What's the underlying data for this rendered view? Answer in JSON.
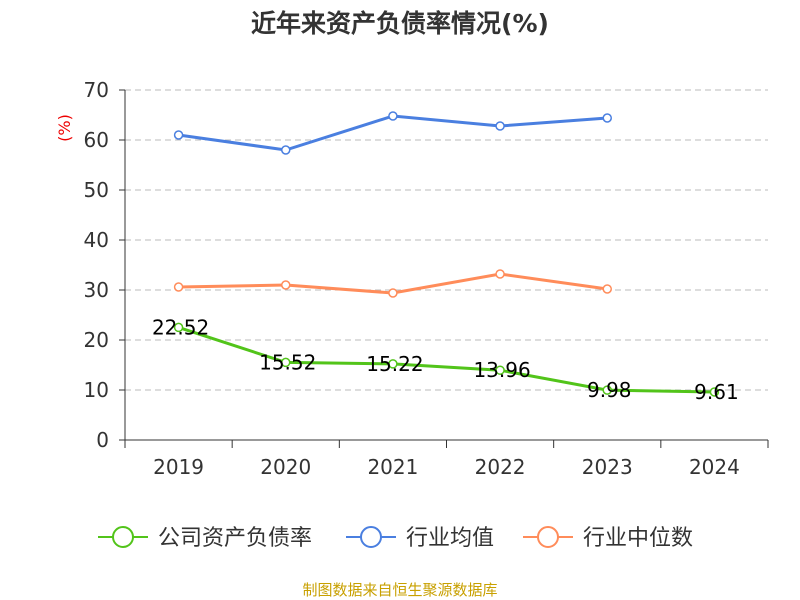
{
  "chart_data": {
    "type": "line",
    "title": "近年来资产负债率情况(%)",
    "ylabel": "(%)",
    "xlabel": "",
    "ylim": [
      0,
      70
    ],
    "yticks": [
      0,
      10,
      20,
      30,
      40,
      50,
      60,
      70
    ],
    "grid": true,
    "legend_position": "bottom",
    "categories": [
      "2019",
      "2020",
      "2021",
      "2022",
      "2023",
      "2024"
    ],
    "series": [
      {
        "name": "公司资产负债率",
        "color": "#52c41a",
        "values": [
          22.52,
          15.52,
          15.22,
          13.96,
          9.98,
          9.61
        ],
        "labels": [
          "22.52",
          "15.52",
          "15.22",
          "13.96",
          "9.98",
          "9.61"
        ]
      },
      {
        "name": "行业均值",
        "color": "#4a7fe0",
        "values": [
          61.0,
          58.0,
          64.8,
          62.8,
          64.4,
          null
        ]
      },
      {
        "name": "行业中位数",
        "color": "#ff8c5a",
        "values": [
          30.6,
          31.0,
          29.4,
          33.2,
          30.2,
          null
        ]
      }
    ],
    "source": "制图数据来自恒生聚源数据库"
  }
}
